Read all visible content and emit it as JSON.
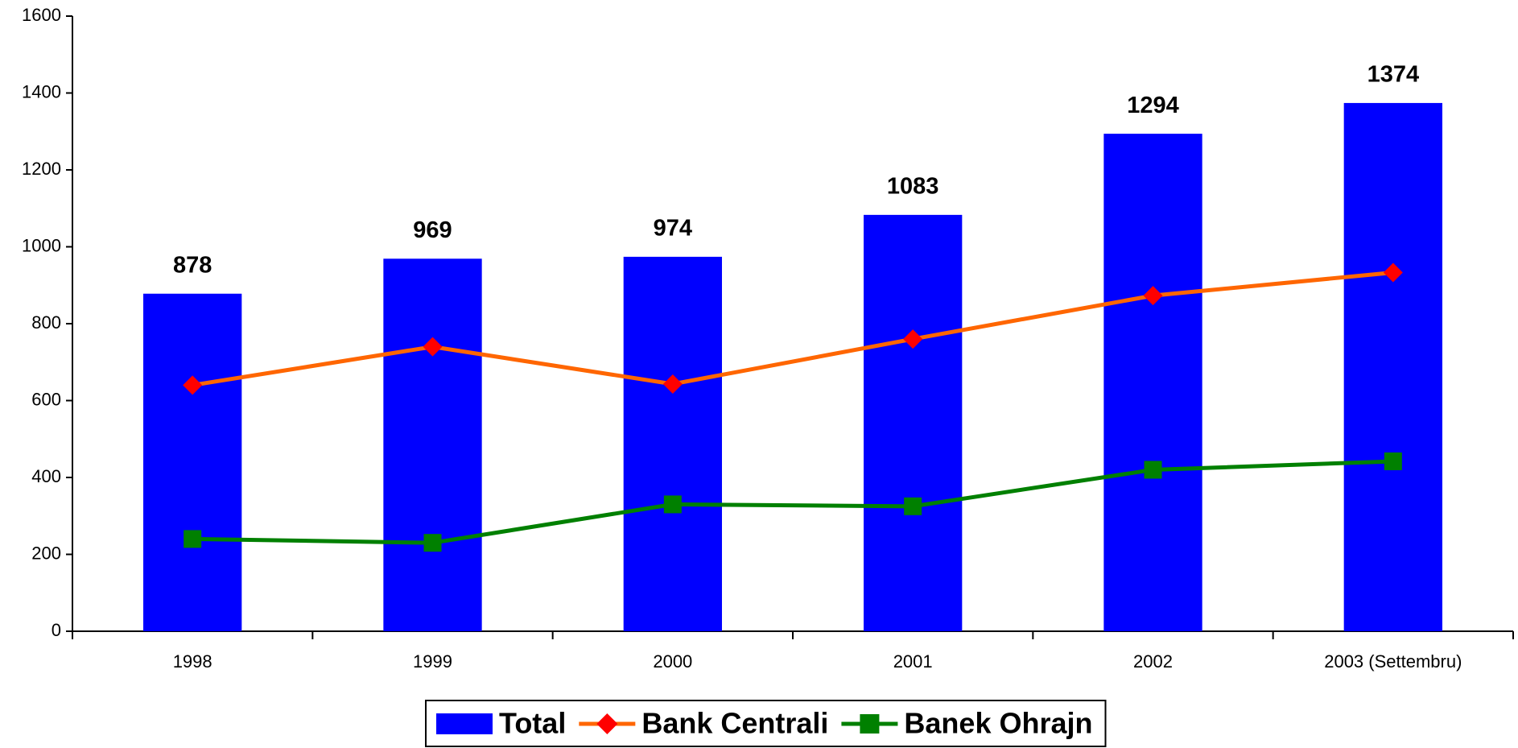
{
  "chart_data": {
    "type": "bar",
    "categories": [
      "1998",
      "1999",
      "2000",
      "2001",
      "2002",
      "2003 (Settembru)"
    ],
    "series": [
      {
        "name": "Total",
        "type": "bar",
        "color": "#0000ff",
        "values": [
          878,
          969,
          974,
          1083,
          1294,
          1374
        ],
        "show_value_labels": true
      },
      {
        "name": "Bank Centrali",
        "type": "line",
        "color": "#ff6600",
        "marker": "diamond",
        "marker_color": "#ff0000",
        "values": [
          640,
          740,
          643,
          760,
          873,
          933
        ]
      },
      {
        "name": "Banek Ohrajn",
        "type": "line",
        "color": "#008000",
        "marker": "square",
        "marker_color": "#008000",
        "values": [
          240,
          230,
          330,
          325,
          420,
          442
        ]
      }
    ],
    "ylim": [
      0,
      1600
    ],
    "yticks": [
      0,
      200,
      400,
      600,
      800,
      1000,
      1200,
      1400,
      1600
    ],
    "grid": false,
    "legend": "bottom"
  }
}
